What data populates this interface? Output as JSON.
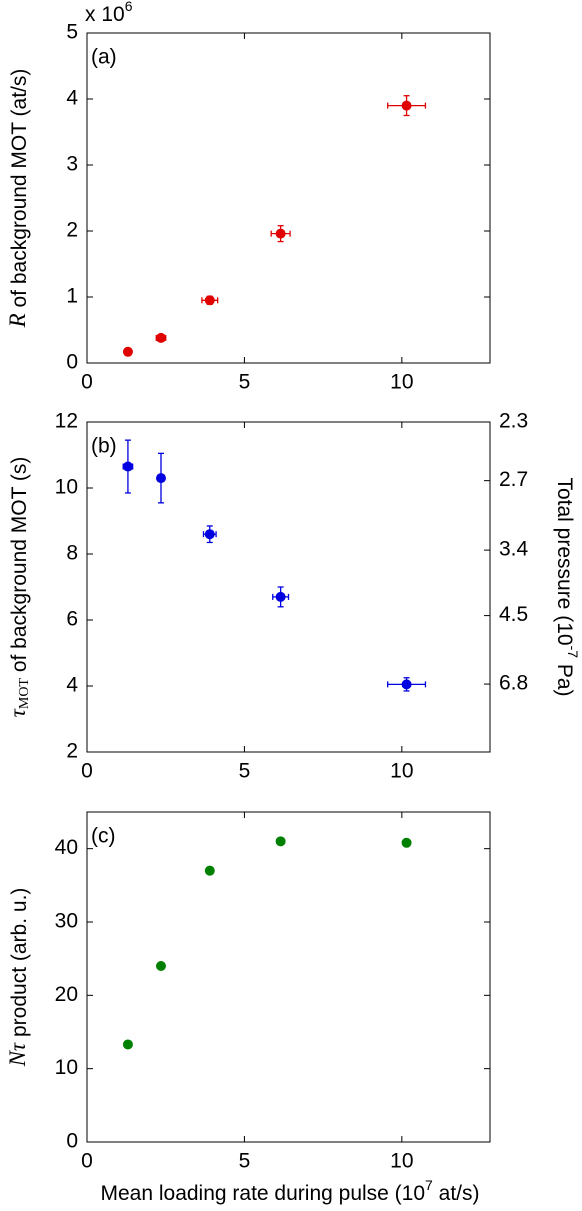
{
  "chart_data": [
    {
      "type": "scatter",
      "panel_label": "(a)",
      "multiplier": {
        "text": "x 10",
        "sup": "6"
      },
      "ylabel": {
        "symbol": "R",
        "text": " of background MOT (at/s)"
      },
      "x": [
        1.3,
        2.35,
        3.9,
        6.15,
        10.15
      ],
      "xerrors": [
        0.1,
        0.15,
        0.25,
        0.3,
        0.6
      ],
      "series": [
        {
          "color": "#e00000",
          "values": [
            0.17,
            0.38,
            0.95,
            1.96,
            3.9
          ],
          "errors": [
            0.03,
            0.04,
            0.06,
            0.12,
            0.15
          ]
        }
      ],
      "xlim": [
        0,
        12.8
      ],
      "xticks": [
        0,
        5,
        10
      ],
      "ylim": [
        0,
        5
      ],
      "yticks": [
        0,
        1,
        2,
        3,
        4,
        5
      ]
    },
    {
      "type": "scatter",
      "panel_label": "(b)",
      "ylabel": {
        "symbol": "τ",
        "sub": "MOT",
        "text": " of background MOT (s)"
      },
      "y2label": {
        "text": "Total pressure (10",
        "sup": "-7",
        "tail": " Pa)"
      },
      "x": [
        1.3,
        2.35,
        3.9,
        6.15,
        10.15
      ],
      "xerrors": [
        0.15,
        0.1,
        0.2,
        0.25,
        0.6
      ],
      "series": [
        {
          "color": "#0000e0",
          "values": [
            10.65,
            10.3,
            8.6,
            6.7,
            4.05
          ],
          "errors": [
            0.8,
            0.75,
            0.25,
            0.3,
            0.2
          ]
        }
      ],
      "xlim": [
        0,
        12.8
      ],
      "xticks": [
        0,
        5,
        10
      ],
      "ylim": [
        2,
        12
      ],
      "yticks": [
        2,
        4,
        6,
        8,
        10,
        12
      ],
      "y2scale": "reciprocal",
      "y2lim": [
        2.3,
        13.8
      ],
      "y2ticks": [
        2.3,
        2.7,
        3.4,
        4.5,
        6.8
      ]
    },
    {
      "type": "scatter",
      "panel_label": "(c)",
      "ylabel": {
        "symbol": "Nτ",
        "text": " product (arb. u.)"
      },
      "xlabel": {
        "text": "Mean loading rate during pulse (10",
        "sup": "7",
        "tail": " at/s)"
      },
      "x": [
        1.3,
        2.35,
        3.9,
        6.15,
        10.15
      ],
      "series": [
        {
          "color": "#008000",
          "values": [
            13.3,
            24,
            37,
            41,
            40.8
          ]
        }
      ],
      "xlim": [
        0,
        12.8
      ],
      "xticks": [
        0,
        5,
        10
      ],
      "ylim": [
        0,
        45
      ],
      "yticks": [
        0,
        10,
        20,
        30,
        40
      ]
    }
  ]
}
